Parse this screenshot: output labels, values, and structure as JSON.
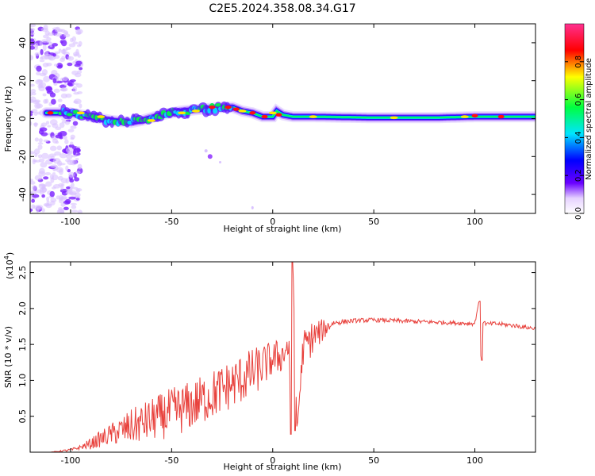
{
  "title": "C2E5.2024.358.08.34.G17",
  "colors": {
    "snr_line": "#e8413c",
    "spectrogram_cmap": [
      "#ffffff",
      "#e6d2ff",
      "#6a00ff",
      "#0000ff",
      "#00e5ff",
      "#00ff40",
      "#ffff00",
      "#ff0000",
      "#ff3090"
    ]
  },
  "chart_data": [
    {
      "type": "heatmap",
      "xlabel": "Height of straight line (km)",
      "ylabel": "Frequency (Hz)",
      "xlim": [
        -120,
        130
      ],
      "ylim": [
        -50,
        50
      ],
      "xticks": [
        -100,
        -50,
        0,
        50,
        100
      ],
      "yticks": [
        -40,
        -20,
        0,
        20,
        40
      ],
      "colorbar": {
        "label": "Normalized spectral amplitude",
        "range": [
          0.0,
          1.0
        ],
        "ticks": [
          "0.0",
          "0.2",
          "0.4",
          "0.6",
          "0.8"
        ],
        "tick_values": [
          0.0,
          0.2,
          0.4,
          0.6,
          0.8
        ]
      },
      "ridge": {
        "x": [
          -110,
          -100,
          -90,
          -80,
          -70,
          -65,
          -55,
          -45,
          -35,
          -25,
          -20,
          -15,
          -10,
          -5,
          0,
          2,
          5,
          10,
          20,
          50,
          80,
          100,
          110,
          130
        ],
        "freq": [
          3,
          3,
          1,
          -1,
          -2,
          -1,
          2,
          4,
          5,
          6,
          6,
          4,
          3,
          1,
          1,
          4,
          2,
          1,
          1,
          0.5,
          0.5,
          1,
          1,
          1
        ]
      }
    },
    {
      "type": "line",
      "xlabel": "Height of straight line (km)",
      "ylabel": "SNR (10 * v/v)",
      "y_multiplier": "(x10",
      "y_multiplier_exp": "4",
      "y_multiplier_close": ")",
      "xlim": [
        -120,
        130
      ],
      "ylim": [
        0,
        26500
      ],
      "xticks": [
        -100,
        -50,
        0,
        50,
        100
      ],
      "yticks": [
        5000,
        10000,
        15000,
        20000,
        25000
      ],
      "ytick_labels": [
        "0.5",
        "1.0",
        "1.5",
        "2.0",
        "2.5"
      ],
      "series": [
        {
          "x": [
            -120,
            -110,
            -100,
            -95,
            -90,
            -80,
            -70,
            -60,
            -50,
            -40,
            -30,
            -20,
            -10,
            0,
            5,
            8,
            9,
            10,
            12,
            15,
            20,
            25,
            30,
            40,
            50,
            60,
            70,
            80,
            90,
            100,
            102,
            103,
            104,
            106,
            110,
            120,
            130
          ],
          "values": [
            0,
            0,
            300,
            700,
            1200,
            2500,
            3500,
            4500,
            5500,
            6500,
            8000,
            9500,
            11000,
            13000,
            13500,
            15000,
            2500,
            26500,
            3000,
            14500,
            16000,
            17000,
            18000,
            18300,
            18400,
            18300,
            18200,
            18100,
            18000,
            17900,
            21000,
            13000,
            18200,
            17800,
            17900,
            17600,
            17200
          ],
          "noise_amplitude": [
            0,
            0,
            200,
            300,
            800,
            1500,
            2500,
            3000,
            3500,
            3500,
            3500,
            3500,
            3500,
            2500,
            2500,
            2500,
            0,
            0,
            0,
            2500,
            2500,
            1500,
            400,
            300,
            300,
            300,
            300,
            300,
            300,
            300,
            0,
            0,
            300,
            300,
            300,
            300,
            300
          ]
        }
      ]
    }
  ]
}
